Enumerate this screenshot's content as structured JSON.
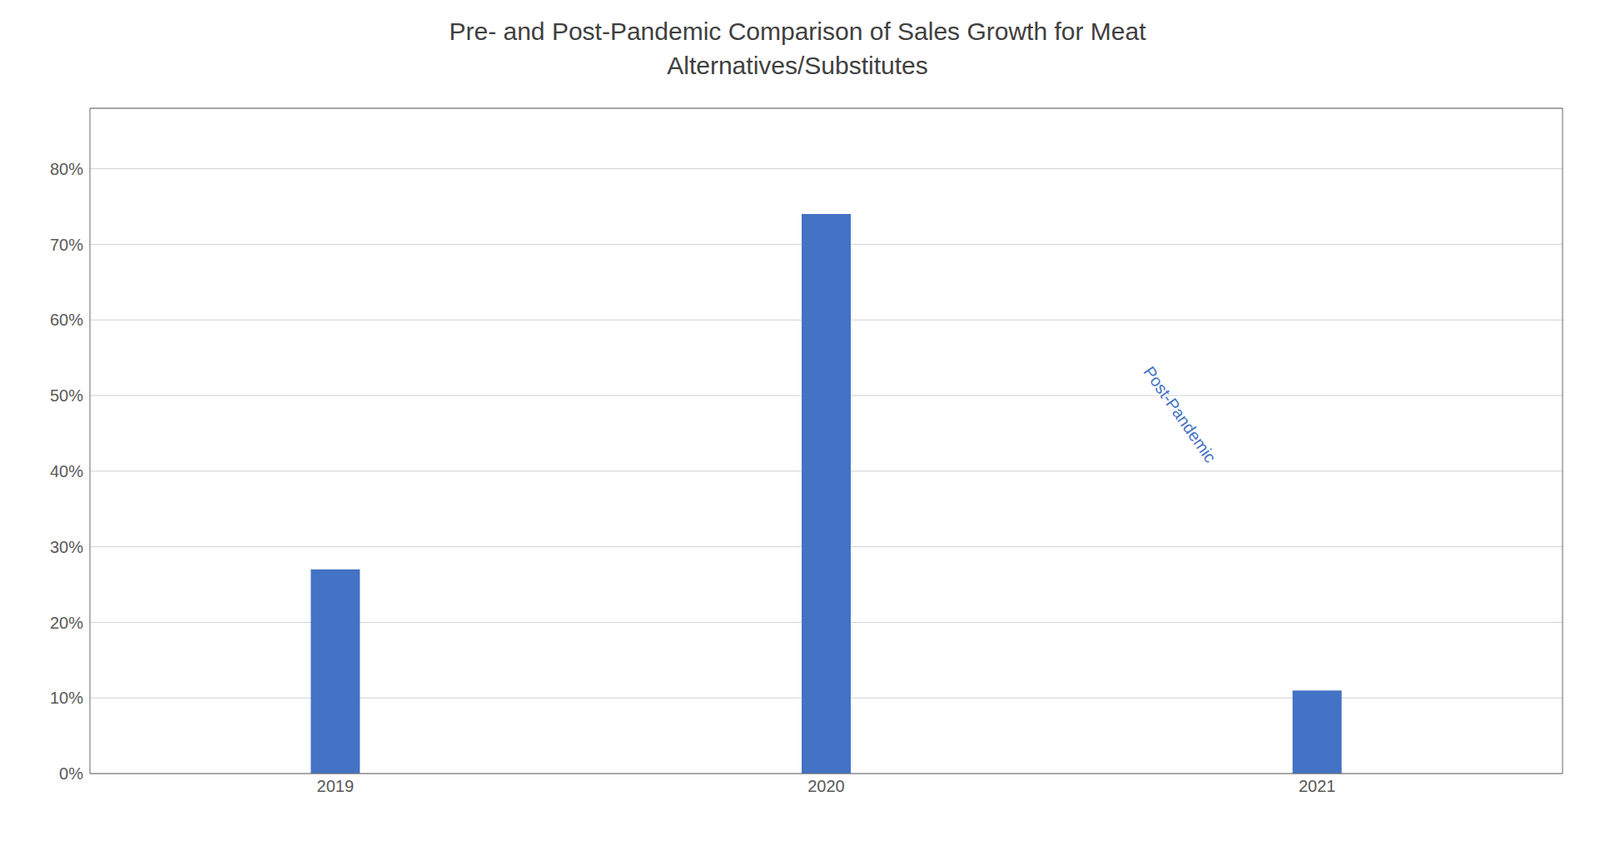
{
  "chart_data": {
    "type": "bar",
    "title": "Pre- and Post-Pandemic Comparison of Sales Growth for Meat\nAlternatives/Substitutes",
    "categories": [
      "2019",
      "2020",
      "2021"
    ],
    "values": [
      0.27,
      0.74,
      0.11
    ],
    "color": "#4472C4",
    "ylim": [
      0,
      0.88
    ],
    "yticks": [
      {
        "value": 0,
        "label": "0%"
      },
      {
        "value": 0.1,
        "label": "10%"
      },
      {
        "value": 0.2,
        "label": "20%"
      },
      {
        "value": 0.3,
        "label": "30%"
      },
      {
        "value": 0.4,
        "label": "40%"
      },
      {
        "value": 0.5,
        "label": "50%"
      },
      {
        "value": 0.6,
        "label": "60%"
      },
      {
        "value": 0.7,
        "label": "70%"
      },
      {
        "value": 0.8,
        "label": "80%"
      }
    ],
    "grid": true,
    "annotations": [
      {
        "text": "Post-Pandemic"
      }
    ]
  }
}
